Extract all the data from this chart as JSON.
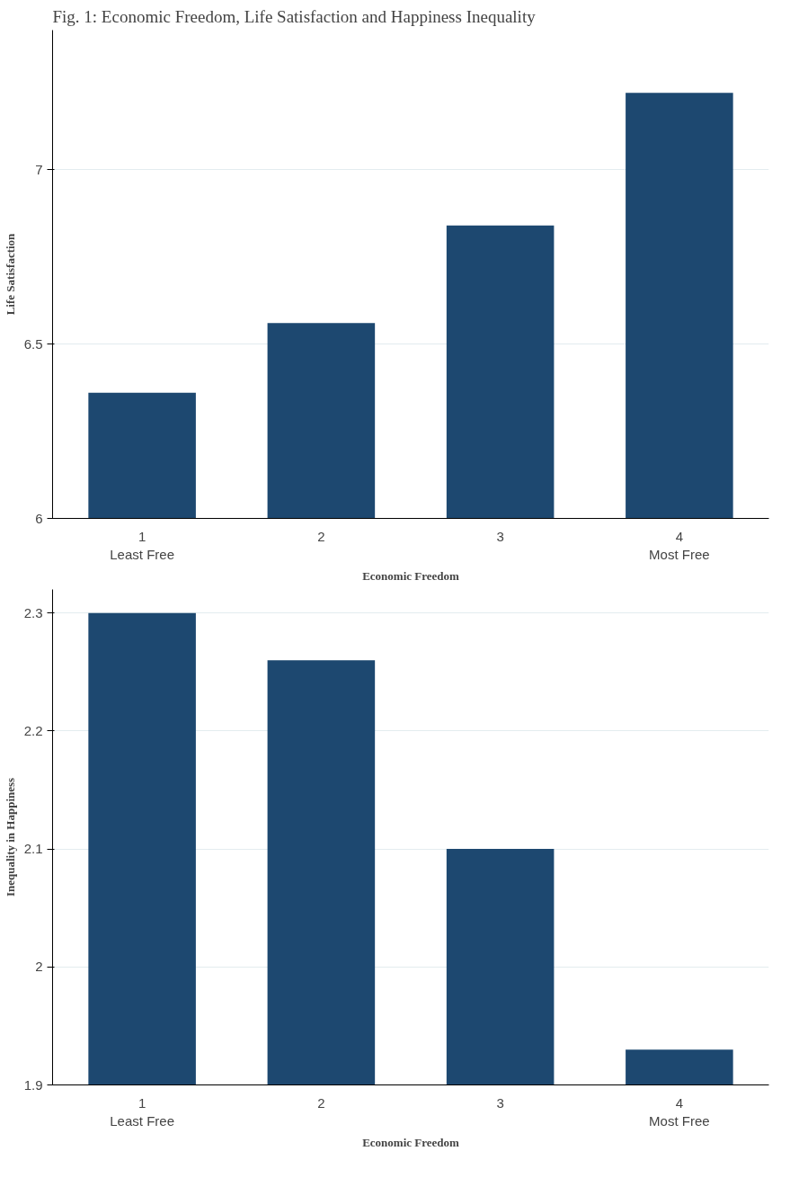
{
  "chart_data": [
    {
      "type": "bar",
      "title": "Fig. 1: Economic Freedom, Life Satisfaction and Happiness Inequality",
      "categories": [
        "1\nLeast Free",
        "2",
        "3",
        "4\nMost Free"
      ],
      "values": [
        6.36,
        6.56,
        6.84,
        7.22
      ],
      "color": "#1d4870",
      "xlabel": "Economic Freedom",
      "ylabel": "Life Satisfaction",
      "ylim": [
        6,
        7.4
      ],
      "yticks": [
        6,
        6.5,
        7
      ],
      "grid": "y"
    },
    {
      "type": "bar",
      "categories": [
        "1\nLeast Free",
        "2",
        "3",
        "4\nMost Free"
      ],
      "values": [
        2.3,
        2.26,
        2.1,
        1.93
      ],
      "color": "#1d4870",
      "xlabel": "Economic Freedom",
      "ylabel": "Inequality in Happiness",
      "ylim": [
        1.9,
        2.32
      ],
      "yticks": [
        1.9,
        2,
        2.1,
        2.2,
        2.3
      ],
      "grid": "y"
    }
  ]
}
